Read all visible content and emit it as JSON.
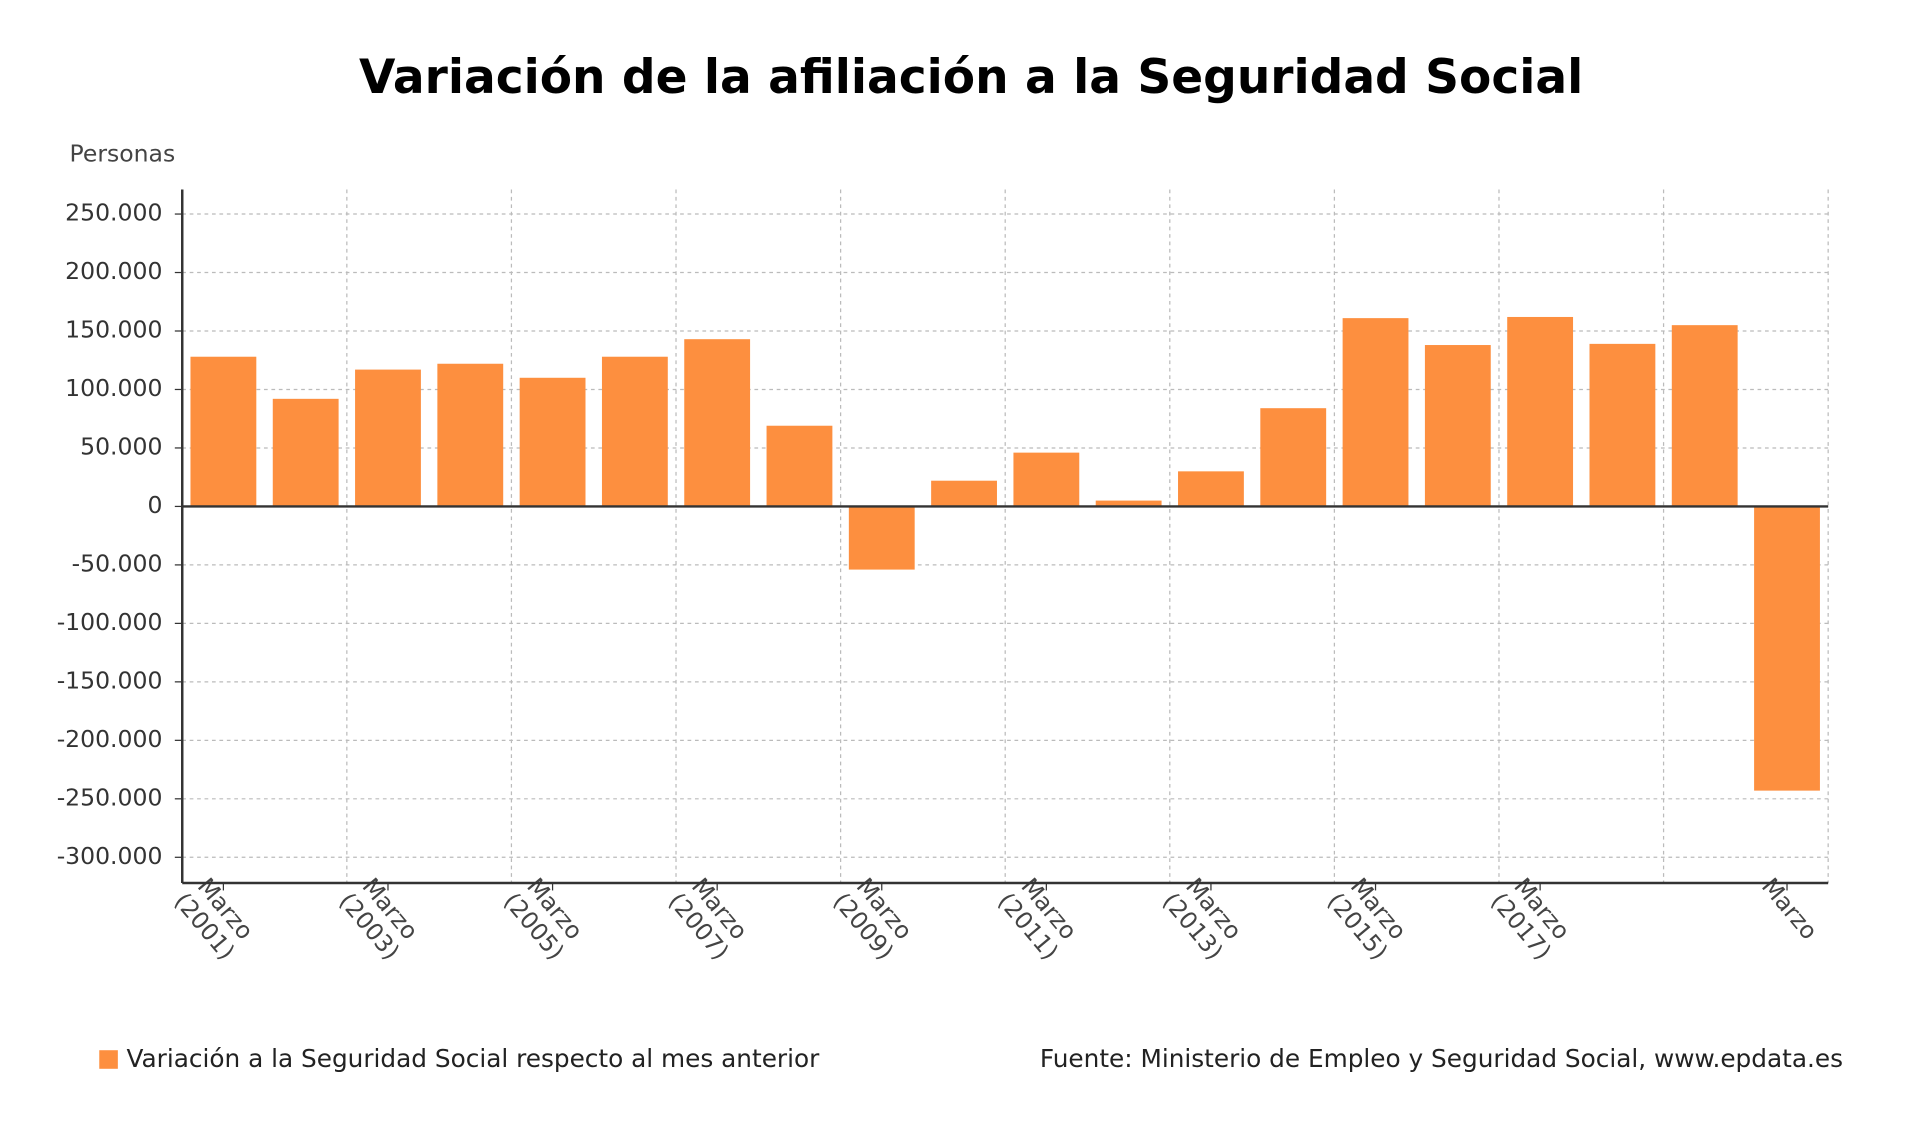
{
  "chart_data": {
    "type": "bar",
    "title": "Variación de la afiliación a la Seguridad Social",
    "y_label": "Personas",
    "categories": [
      "Marzo (2001)",
      null,
      "Marzo (2003)",
      null,
      "Marzo (2005)",
      null,
      "Marzo (2007)",
      null,
      "Marzo (2009)",
      null,
      "Marzo (2011)",
      null,
      "Marzo (2013)",
      null,
      "Marzo (2015)",
      null,
      "Marzo (2017)",
      null,
      null,
      "Marzo"
    ],
    "series": [
      {
        "name": "Variación a la Seguridad Social respecto al mes anterior",
        "color": "#fd8f3f",
        "values": [
          128000,
          92000,
          117000,
          122000,
          110000,
          128000,
          143000,
          69000,
          -54000,
          22000,
          46000,
          5000,
          30000,
          84000,
          161000,
          138000,
          162000,
          139000,
          155000,
          -243000
        ]
      }
    ],
    "ylim": [
      -322000,
      271000
    ],
    "yticks": [
      {
        "value": 250000,
        "label": "250.000"
      },
      {
        "value": 200000,
        "label": "200.000"
      },
      {
        "value": 150000,
        "label": "150.000"
      },
      {
        "value": 100000,
        "label": "100.000"
      },
      {
        "value": 50000,
        "label": "50.000"
      },
      0,
      {
        "value": -50000,
        "label": "-50.000"
      },
      {
        "value": -100000,
        "label": "-100.000"
      },
      {
        "value": -150000,
        "label": "-150.000"
      },
      {
        "value": -200000,
        "label": "-200.000"
      },
      {
        "value": -250000,
        "label": "-250.000"
      },
      {
        "value": -300000,
        "label": "-300.000"
      }
    ],
    "grid": true,
    "source": "Fuente: Ministerio de Empleo y Seguridad Social, www.epdata.es"
  }
}
